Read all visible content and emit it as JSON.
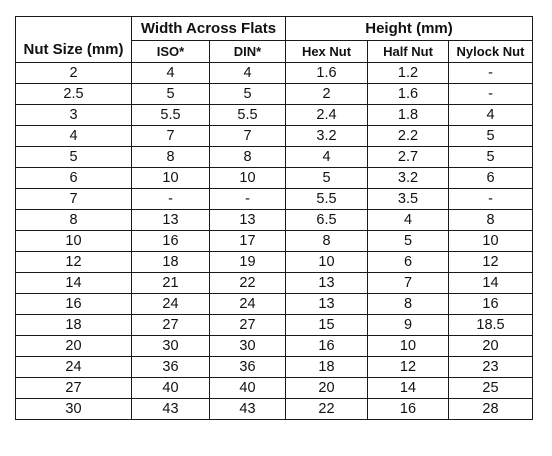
{
  "table": {
    "header": {
      "nut_size": "Nut Size (mm)",
      "width_group": "Width Across Flats",
      "height_group": "Height (mm)",
      "iso": "ISO*",
      "din": "DIN*",
      "hex_nut": "Hex Nut",
      "half_nut": "Half Nut",
      "nylock_nut": "Nylock Nut"
    },
    "rows": [
      [
        "2",
        "4",
        "4",
        "1.6",
        "1.2",
        "-"
      ],
      [
        "2.5",
        "5",
        "5",
        "2",
        "1.6",
        "-"
      ],
      [
        "3",
        "5.5",
        "5.5",
        "2.4",
        "1.8",
        "4"
      ],
      [
        "4",
        "7",
        "7",
        "3.2",
        "2.2",
        "5"
      ],
      [
        "5",
        "8",
        "8",
        "4",
        "2.7",
        "5"
      ],
      [
        "6",
        "10",
        "10",
        "5",
        "3.2",
        "6"
      ],
      [
        "7",
        "-",
        "-",
        "5.5",
        "3.5",
        "-"
      ],
      [
        "8",
        "13",
        "13",
        "6.5",
        "4",
        "8"
      ],
      [
        "10",
        "16",
        "17",
        "8",
        "5",
        "10"
      ],
      [
        "12",
        "18",
        "19",
        "10",
        "6",
        "12"
      ],
      [
        "14",
        "21",
        "22",
        "13",
        "7",
        "14"
      ],
      [
        "16",
        "24",
        "24",
        "13",
        "8",
        "16"
      ],
      [
        "18",
        "27",
        "27",
        "15",
        "9",
        "18.5"
      ],
      [
        "20",
        "30",
        "30",
        "16",
        "10",
        "20"
      ],
      [
        "24",
        "36",
        "36",
        "18",
        "12",
        "23"
      ],
      [
        "27",
        "40",
        "40",
        "20",
        "14",
        "25"
      ],
      [
        "30",
        "43",
        "43",
        "22",
        "16",
        "28"
      ]
    ]
  }
}
